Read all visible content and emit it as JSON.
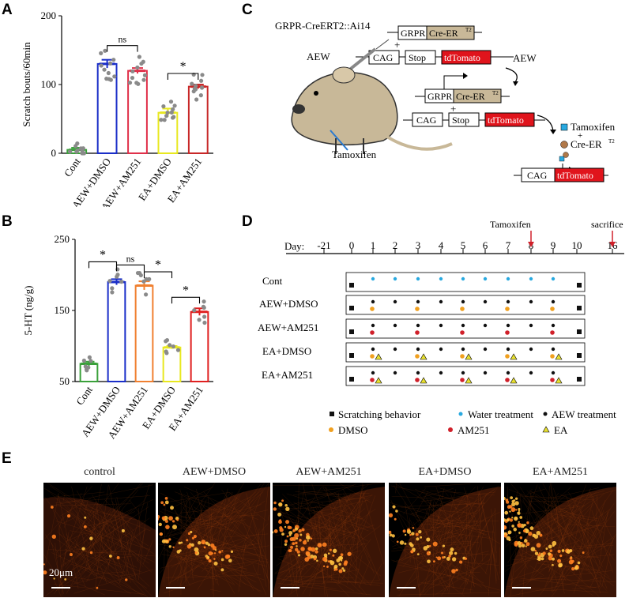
{
  "figure": {
    "panels": {
      "A": "A",
      "B": "B",
      "C": "C",
      "D": "D",
      "E": "E"
    },
    "panelC": {
      "genotype": "GRPR-CreERT2::Ai14",
      "grpr": "GRPR",
      "cre": "Cre-ER",
      "cre_sup": "T2",
      "plus": "+",
      "cag": "CAG",
      "stop": "Stop",
      "tdtomato": "tdTomato",
      "aew": "AEW",
      "tamoxifen": "Tamoxifen",
      "legend_tamoxifen": "Tamoxifen",
      "legend_cre": "Cre-ER"
    },
    "panelD": {
      "day_label": "Day:",
      "days": [
        "-21",
        "0",
        "1",
        "2",
        "3",
        "4",
        "5",
        "6",
        "7",
        "8",
        "9",
        "10",
        "16"
      ],
      "tamoxifen": "Tamoxifen",
      "sacrifice": "sacrifice",
      "groups": [
        "Cont",
        "AEW+DMSO",
        "AEW+AM251",
        "EA+DMSO",
        "EA+AM251"
      ],
      "legend": {
        "scratching": "Scratching behavior",
        "water": "Water treatment",
        "aew": "AEW treatment",
        "dmso": "DMSO",
        "am251": "AM251",
        "ea": "EA"
      },
      "colors": {
        "water": "#29a9e0",
        "dmso": "#f0a020",
        "am251": "#d0202a",
        "ea": "#e8e030",
        "aew": "#111111"
      }
    },
    "panelE": {
      "titles": [
        "control",
        "AEW+DMSO",
        "AEW+AM251",
        "EA+DMSO",
        "EA+AM251"
      ],
      "scale": "20μm"
    }
  },
  "chart_data": [
    {
      "type": "bar",
      "panel": "A",
      "categories": [
        "Cont",
        "AEW+DMSO",
        "AEW+AM251",
        "EA+DMSO",
        "EA+AM251"
      ],
      "values": [
        5,
        130,
        120,
        59,
        97
      ],
      "errors": [
        3,
        6,
        4,
        6,
        3
      ],
      "colors": [
        "#3aa03a",
        "#1a2ec8",
        "#e0304a",
        "#e8e820",
        "#c82828"
      ],
      "ylabel": "Scratch bouts/60min",
      "ylim": [
        0,
        200
      ],
      "yticks": [
        0,
        100,
        200
      ],
      "annotations": [
        {
          "between": [
            "AEW+DMSO",
            "AEW+AM251"
          ],
          "text": "ns"
        },
        {
          "between": [
            "EA+DMSO",
            "EA+AM251"
          ],
          "text": "*"
        }
      ]
    },
    {
      "type": "bar",
      "panel": "B",
      "categories": [
        "Cont",
        "AEW+DMSO",
        "AEW+AM251",
        "EA+DMSO",
        "EA+AM251"
      ],
      "values": [
        75,
        190,
        185,
        98,
        148
      ],
      "errors": [
        3,
        4,
        6,
        2,
        5
      ],
      "colors": [
        "#3aa03a",
        "#1a2ec8",
        "#f08030",
        "#e8e820",
        "#e02020"
      ],
      "ylabel": "5-HT (ng/g)",
      "ylim": [
        50,
        250
      ],
      "yticks": [
        50,
        150,
        250
      ],
      "annotations": [
        {
          "between": [
            "Cont",
            "AEW+DMSO"
          ],
          "text": "*"
        },
        {
          "between": [
            "AEW+DMSO",
            "AEW+AM251"
          ],
          "text": "ns"
        },
        {
          "between": [
            "AEW+AM251",
            "EA+DMSO"
          ],
          "text": "*"
        },
        {
          "between": [
            "EA+DMSO",
            "EA+AM251"
          ],
          "text": "*"
        }
      ]
    }
  ]
}
